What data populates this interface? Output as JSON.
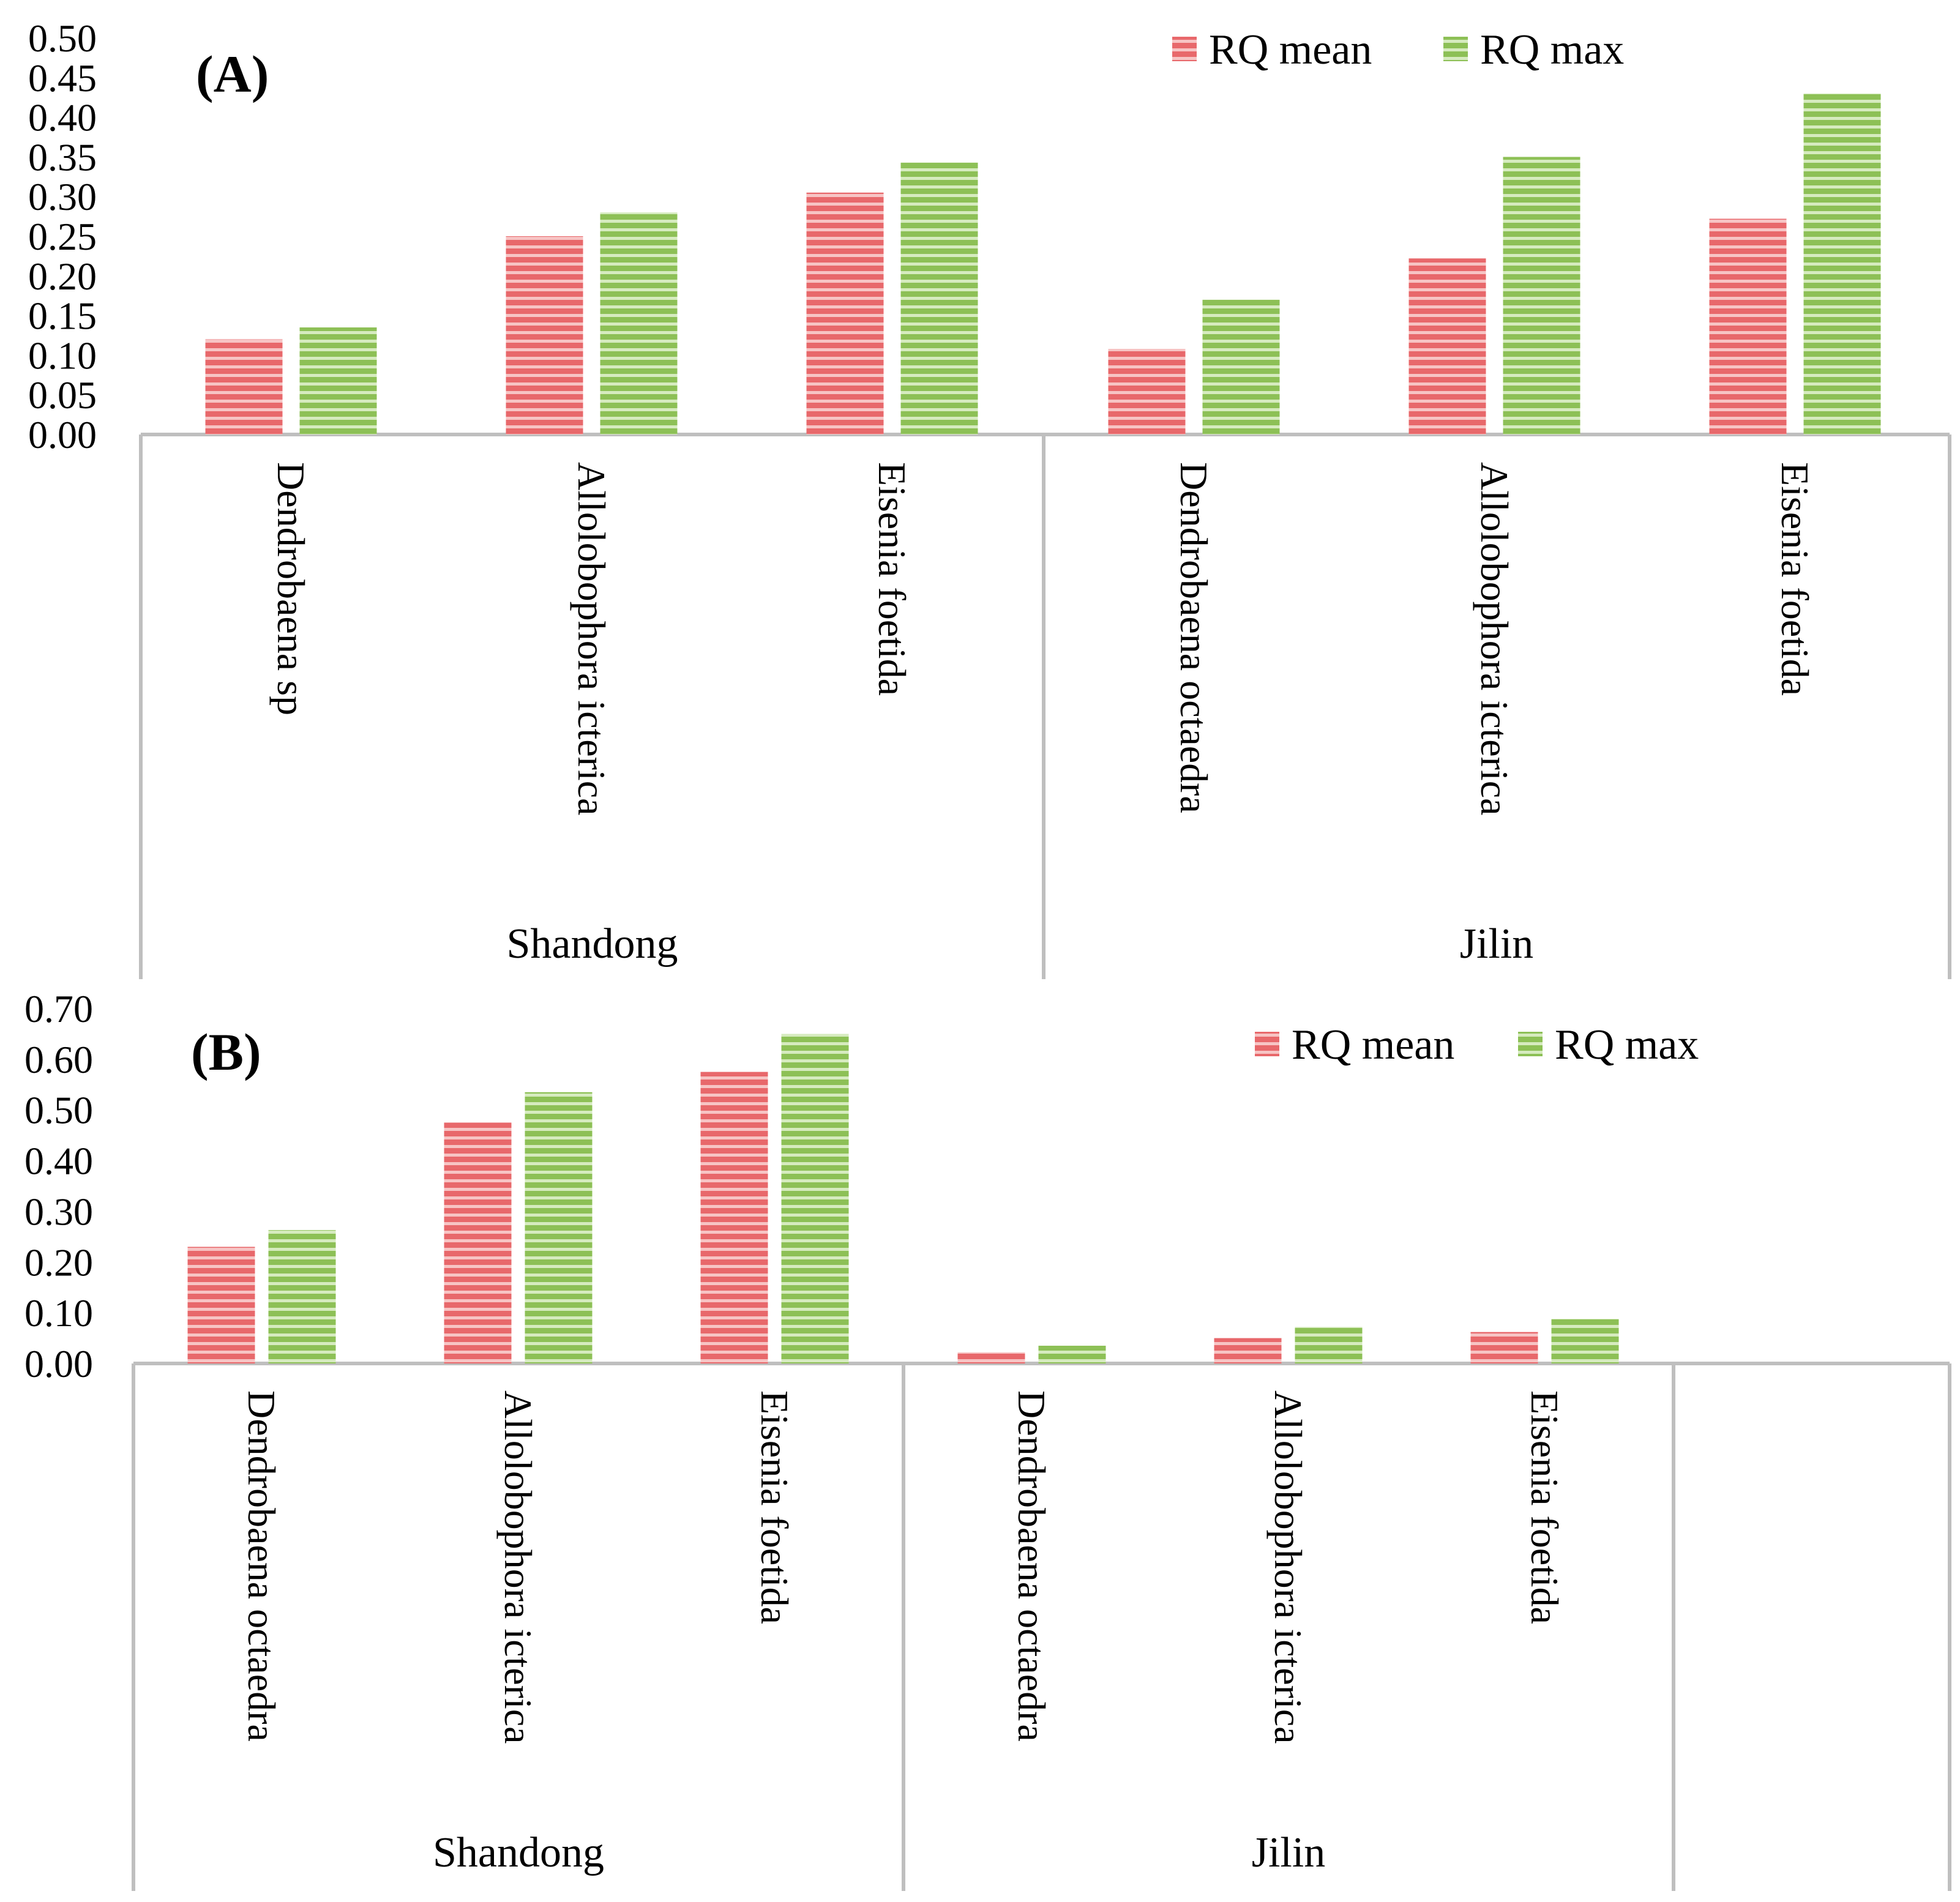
{
  "colors": {
    "mean": "#e8686b",
    "mean_stripe": "#f7c4c4",
    "max": "#8dc056",
    "max_stripe": "#d6ebbf",
    "axis": "#bfbfbf"
  },
  "chart_data": [
    {
      "type": "bar",
      "panel_label": "(A)",
      "ylim": [
        0,
        0.5
      ],
      "yticks": [
        "0.00",
        "0.05",
        "0.10",
        "0.15",
        "0.20",
        "0.25",
        "0.30",
        "0.35",
        "0.40",
        "0.45",
        "0.50"
      ],
      "legend_position": "top-right",
      "groups": [
        {
          "name": "Shandong",
          "categories": [
            "Dendrobaena sp",
            "Allolobophora icterica",
            "Eisenia foetida"
          ]
        },
        {
          "name": "Jilin",
          "categories": [
            "Dendrobaena octaedra",
            "Allolobophora icterica",
            "Eisenia foetida"
          ]
        }
      ],
      "series": [
        {
          "name": "RQ mean",
          "values": [
            0.12,
            0.25,
            0.305,
            0.108,
            0.222,
            0.272
          ]
        },
        {
          "name": "RQ max",
          "values": [
            0.135,
            0.28,
            0.343,
            0.17,
            0.35,
            0.43
          ]
        }
      ]
    },
    {
      "type": "bar",
      "panel_label": "(B)",
      "ylim": [
        0,
        0.7
      ],
      "yticks": [
        "0.00",
        "0.10",
        "0.20",
        "0.30",
        "0.40",
        "0.50",
        "0.60",
        "0.70"
      ],
      "legend_position": "top-right",
      "groups": [
        {
          "name": "Shandong",
          "categories": [
            "Dendrobaena octaedra",
            "Allolobophora icterica",
            "Eisenia foetida"
          ]
        },
        {
          "name": "Jilin",
          "categories": [
            "Dendrobaena octaedra",
            "Allolobophora icterica",
            "Eisenia foetida"
          ]
        },
        {
          "name": "",
          "categories": []
        }
      ],
      "series": [
        {
          "name": "RQ mean",
          "values": [
            0.23,
            0.475,
            0.575,
            0.022,
            0.05,
            0.062
          ]
        },
        {
          "name": "RQ max",
          "values": [
            0.263,
            0.535,
            0.65,
            0.035,
            0.072,
            0.088
          ]
        }
      ]
    }
  ]
}
